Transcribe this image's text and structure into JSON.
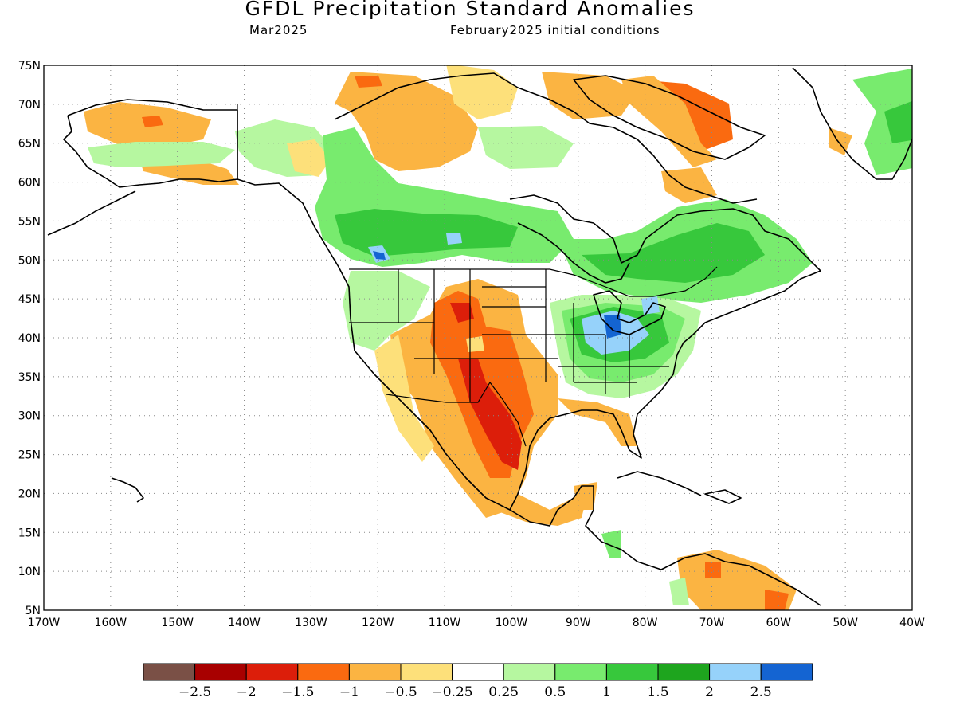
{
  "title": "GFDL Precipitation Standard Anomalies",
  "subtitle_left": "Mar2025",
  "subtitle_right": "February2025 initial conditions",
  "axes": {
    "lon_ticks": [
      "170W",
      "160W",
      "150W",
      "140W",
      "130W",
      "120W",
      "110W",
      "100W",
      "90W",
      "80W",
      "70W",
      "60W",
      "50W",
      "40W"
    ],
    "lat_ticks": [
      "75N",
      "70N",
      "65N",
      "60N",
      "55N",
      "50N",
      "45N",
      "40N",
      "35N",
      "30N",
      "25N",
      "20N",
      "15N",
      "10N",
      "5N"
    ],
    "lon_range": [
      -170,
      -40
    ],
    "lat_range": [
      5,
      75
    ],
    "grid": "dotted"
  },
  "legend": {
    "labels": [
      "−2.5",
      "−2",
      "−1.5",
      "−1",
      "−0.5",
      "−0.25",
      "0.25",
      "0.5",
      "1",
      "1.5",
      "2",
      "2.5"
    ],
    "colors": [
      "#7a5046",
      "#a80000",
      "#dc1e0a",
      "#fa6a10",
      "#fbb442",
      "#fde07a",
      "#ffffff",
      "#b6f7a0",
      "#78eb6e",
      "#37c83c",
      "#1ea51e",
      "#96d2fa",
      "#1464d2"
    ]
  },
  "palette": {
    "dry_strong": "#dc1e0a",
    "dry_moderate": "#fa6a10",
    "dry": "#fbb442",
    "dry_light": "#fde07a",
    "wet_light": "#b6f7a0",
    "wet": "#78eb6e",
    "wet_moderate": "#37c83c",
    "wet_strong": "#1ea51e",
    "very_wet": "#96d2fa",
    "extreme_wet": "#1464d2"
  }
}
